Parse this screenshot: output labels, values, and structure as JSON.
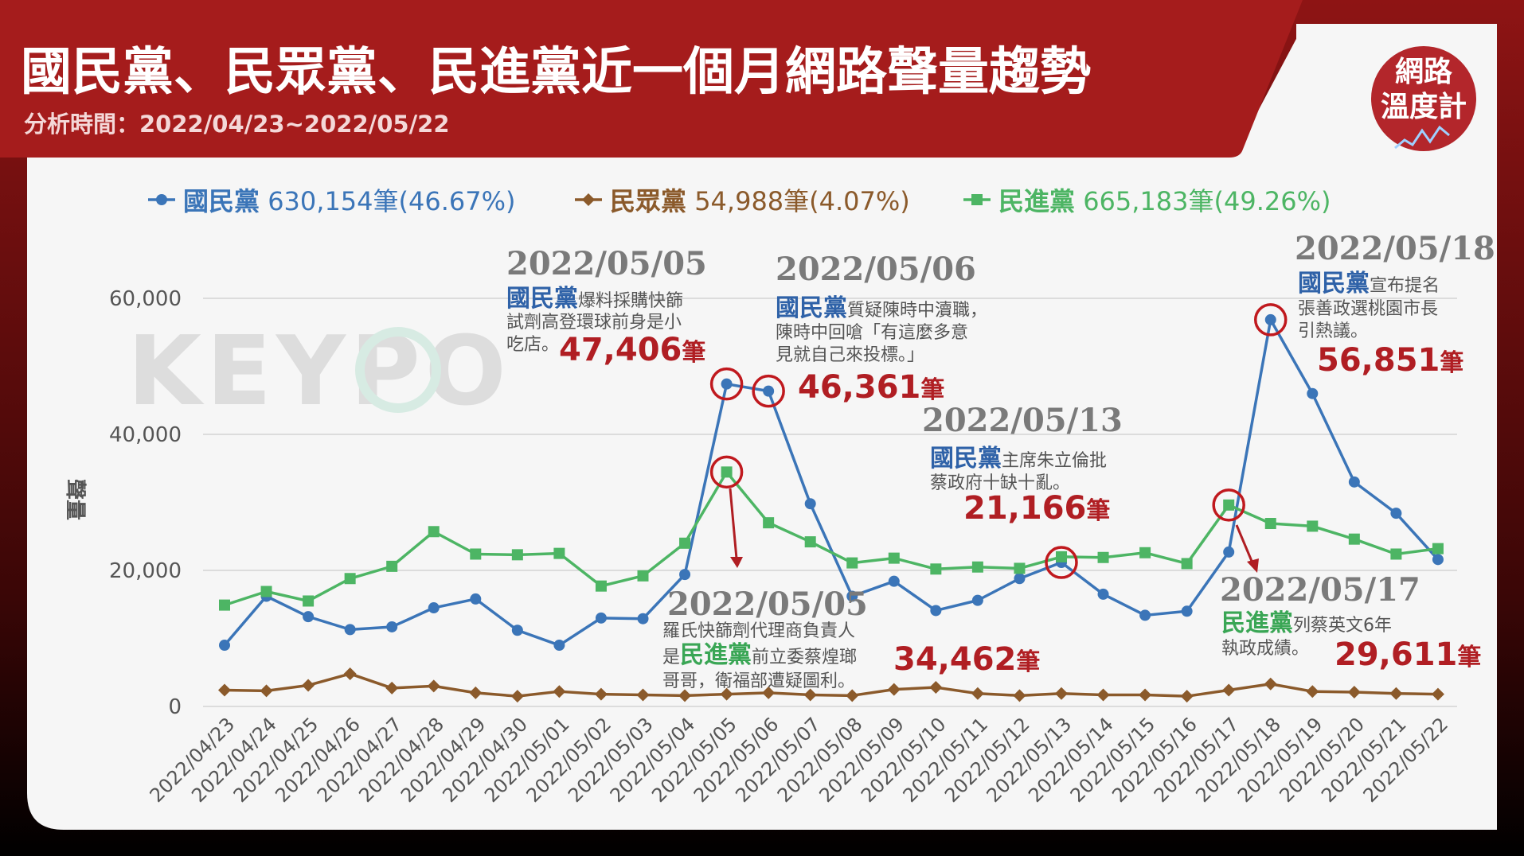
{
  "header": {
    "title": "國民黨、民眾黨、民進黨近一個月網路聲量趨勢",
    "subtitle": "分析時間：2022/04/23~2022/05/22"
  },
  "brand": {
    "badge_line1": "網路",
    "badge_line2": "溫度計",
    "watermark": "KEYPO"
  },
  "legend": [
    {
      "party": "國民黨",
      "text": " 630,154筆(46.67%)",
      "color": "#3b75b8",
      "marker": "circle"
    },
    {
      "party": "民眾黨",
      "text": " 54,988筆(4.07%)",
      "color": "#8b5a2b",
      "marker": "diamond"
    },
    {
      "party": "民進黨",
      "text": " 665,183筆(49.26%)",
      "color": "#4db564",
      "marker": "square"
    }
  ],
  "colors": {
    "banner": "#a51c1c",
    "kmt": "#3b75b8",
    "tpp": "#8b5a2b",
    "dpp": "#4db564",
    "highlight": "#c0191e",
    "date_gray": "#7a7a7a"
  },
  "chart_data": {
    "type": "line",
    "ylabel": "聲量",
    "ylim": [
      0,
      60000
    ],
    "yticks": [
      0,
      20000,
      40000,
      60000
    ],
    "ytick_labels": [
      "0",
      "20,000",
      "40,000",
      "60,000"
    ],
    "grid": true,
    "legend_position": "top",
    "categories": [
      "2022/04/23",
      "2022/04/24",
      "2022/04/25",
      "2022/04/26",
      "2022/04/27",
      "2022/04/28",
      "2022/04/29",
      "2022/04/30",
      "2022/05/01",
      "2022/05/02",
      "2022/05/03",
      "2022/05/04",
      "2022/05/05",
      "2022/05/06",
      "2022/05/07",
      "2022/05/08",
      "2022/05/09",
      "2022/05/10",
      "2022/05/11",
      "2022/05/12",
      "2022/05/13",
      "2022/05/14",
      "2022/05/15",
      "2022/05/16",
      "2022/05/17",
      "2022/05/18",
      "2022/05/19",
      "2022/05/20",
      "2022/05/21",
      "2022/05/22"
    ],
    "series": [
      {
        "name": "國民黨",
        "key": "kmt",
        "color": "#3b75b8",
        "marker": "circle",
        "values": [
          9000,
          16200,
          13200,
          11300,
          11700,
          14500,
          15800,
          11200,
          9000,
          13000,
          12900,
          19400,
          47406,
          46361,
          29800,
          16200,
          18400,
          14100,
          15600,
          18800,
          21166,
          16500,
          13400,
          14000,
          22700,
          56851,
          46000,
          33000,
          28400,
          21600
        ]
      },
      {
        "name": "民眾黨",
        "key": "tpp",
        "color": "#8b5a2b",
        "marker": "diamond",
        "values": [
          2400,
          2300,
          3100,
          4800,
          2700,
          3000,
          2000,
          1500,
          2200,
          1800,
          1700,
          1600,
          1800,
          2000,
          1700,
          1600,
          2500,
          2800,
          1900,
          1600,
          1900,
          1700,
          1700,
          1500,
          2400,
          3300,
          2200,
          2100,
          1900,
          1800
        ]
      },
      {
        "name": "民進黨",
        "key": "dpp",
        "color": "#4db564",
        "marker": "square",
        "values": [
          14900,
          16900,
          15500,
          18800,
          20600,
          25700,
          22400,
          22300,
          22500,
          17700,
          19200,
          24000,
          34462,
          27000,
          24200,
          21100,
          21800,
          20200,
          20500,
          20300,
          22000,
          21900,
          22600,
          21000,
          29611,
          26900,
          26500,
          24600,
          22400,
          23200
        ]
      }
    ],
    "highlights": [
      {
        "series": "kmt",
        "index": 12
      },
      {
        "series": "kmt",
        "index": 13
      },
      {
        "series": "dpp",
        "index": 12
      },
      {
        "series": "kmt",
        "index": 20
      },
      {
        "series": "dpp",
        "index": 24
      },
      {
        "series": "kmt",
        "index": 25
      }
    ],
    "annotations": {
      "a1": {
        "date": "2022/05/05",
        "party": "國民黨",
        "text_line1": "爆料採購快篩",
        "text_line2": "試劑高登環球前身是小",
        "text_line3": "吃店。",
        "value": "47,406",
        "unit": "筆"
      },
      "a2": {
        "date": "2022/05/06",
        "party": "國民黨",
        "text_line1": "質疑陳時中瀆職，",
        "text_line2": "陳時中回嗆「有這麼多意",
        "text_line3": "見就自己來投標。」",
        "value": "46,361",
        "unit": "筆"
      },
      "a3": {
        "date": "2022/05/13",
        "party": "國民黨",
        "text_line1": "主席朱立倫批",
        "text_line2": "蔡政府十缺十亂。",
        "value": "21,166",
        "unit": "筆"
      },
      "a4": {
        "date": "2022/05/18",
        "party": "國民黨",
        "text_line1": "宣布提名",
        "text_line2": "張善政選桃園市長",
        "text_line3": "引熱議。",
        "value": "56,851",
        "unit": "筆"
      },
      "a5": {
        "date": "2022/05/05",
        "text_line1": "羅氏快篩劑代理商負責人",
        "text_prefix": "是",
        "party": "民進黨",
        "text_suffix": "前立委蔡煌瑯",
        "text_line3": "哥哥，衛福部遭疑圖利。",
        "value": "34,462",
        "unit": "筆"
      },
      "a6": {
        "date": "2022/05/17",
        "party": "民進黨",
        "text_line1": "列蔡英文6年",
        "text_line2": "執政成績。",
        "value": "29,611",
        "unit": "筆"
      }
    }
  }
}
